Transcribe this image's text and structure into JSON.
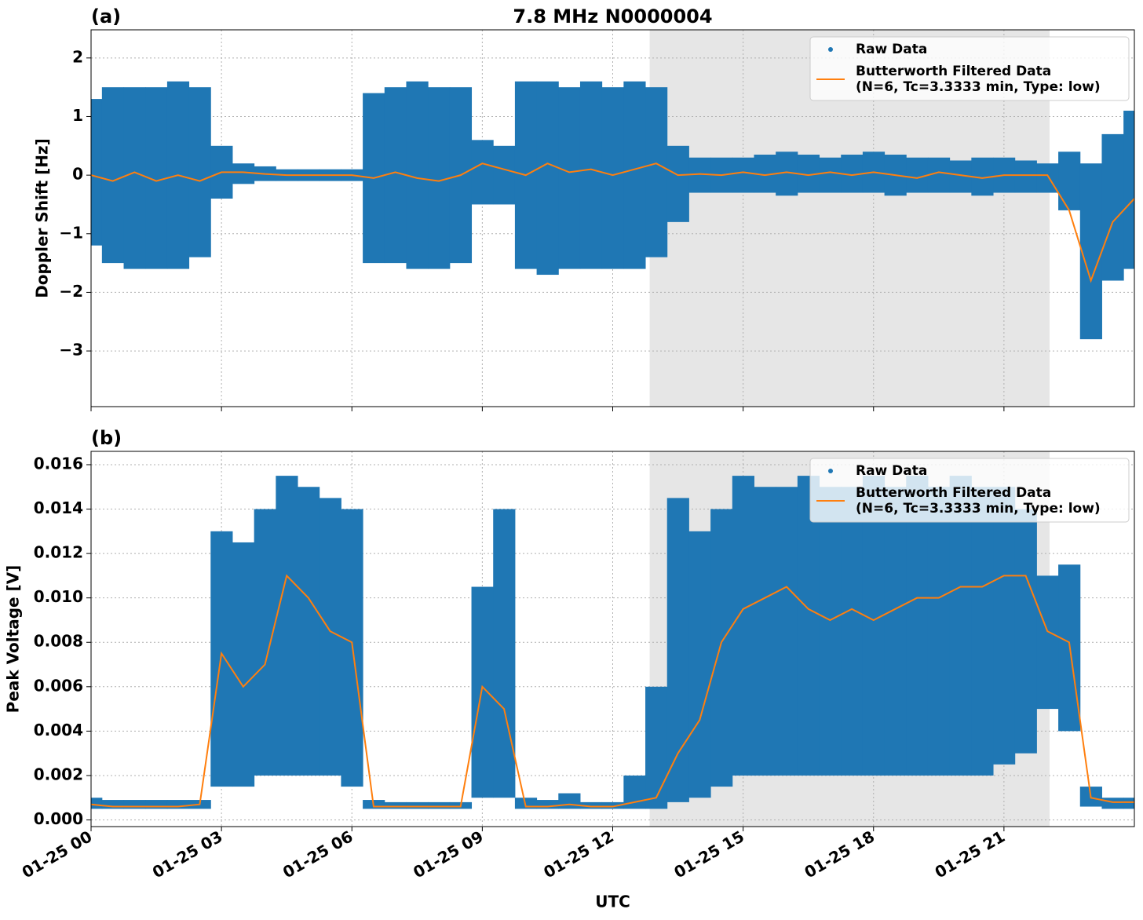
{
  "chart_data": [
    {
      "type": "scatter",
      "panel_label": "(a)",
      "title": "7.8 MHz N0000004",
      "ylabel": "Doppler Shift [Hz]",
      "xlim": [
        0,
        24
      ],
      "ylim": [
        -3.95,
        2.48
      ],
      "xticks": [
        0,
        3,
        6,
        9,
        12,
        15,
        18,
        21
      ],
      "yticks": [
        {
          "value": -3,
          "label": "−3"
        },
        {
          "value": -2,
          "label": "−2"
        },
        {
          "value": -1,
          "label": "−1"
        },
        0,
        1,
        2
      ],
      "grid": true,
      "legend": "upper right",
      "shade": [
        12.85,
        22.05
      ],
      "shade_color": "#e6e6e6",
      "x": [
        0,
        0.5,
        1,
        1.5,
        2,
        2.5,
        3,
        3.5,
        4,
        4.5,
        5,
        5.5,
        6,
        6.5,
        7,
        7.5,
        8,
        8.5,
        9,
        9.5,
        10,
        10.5,
        11,
        11.5,
        12,
        12.5,
        13,
        13.5,
        14,
        14.5,
        15,
        15.5,
        16,
        16.5,
        17,
        17.5,
        18,
        18.5,
        19,
        19.5,
        20,
        20.5,
        21,
        21.5,
        22,
        22.5,
        23,
        23.5,
        24
      ],
      "series": [
        {
          "name": "Raw Data",
          "color": "#1f77b4",
          "values": [
            1.3,
            1.5,
            1.5,
            1.5,
            1.6,
            1.5,
            0.5,
            0.2,
            0.15,
            0.1,
            0.1,
            0.1,
            0.1,
            1.4,
            1.5,
            1.6,
            1.5,
            1.5,
            0.6,
            0.5,
            1.6,
            1.6,
            1.5,
            1.6,
            1.5,
            1.6,
            1.5,
            0.5,
            0.3,
            0.3,
            0.3,
            0.35,
            0.4,
            0.35,
            0.3,
            0.35,
            0.4,
            0.35,
            0.3,
            0.3,
            0.25,
            0.3,
            0.3,
            0.25,
            0.2,
            0.4,
            0.2,
            0.7,
            1.1
          ],
          "lower": [
            -1.2,
            -1.5,
            -1.6,
            -1.6,
            -1.6,
            -1.4,
            -0.4,
            -0.15,
            -0.1,
            -0.1,
            -0.1,
            -0.1,
            -0.1,
            -1.5,
            -1.5,
            -1.6,
            -1.6,
            -1.5,
            -0.5,
            -0.5,
            -1.6,
            -1.7,
            -1.6,
            -1.6,
            -1.6,
            -1.6,
            -1.4,
            -0.8,
            -0.3,
            -0.3,
            -0.3,
            -0.3,
            -0.35,
            -0.3,
            -0.3,
            -0.3,
            -0.3,
            -0.35,
            -0.3,
            -0.3,
            -0.3,
            -0.35,
            -0.3,
            -0.3,
            -0.3,
            -0.6,
            -2.8,
            -1.8,
            -1.6
          ]
        },
        {
          "name": "Butterworth Filtered Data",
          "name_detail": "(N=6, Tc=3.3333 min, Type: low)",
          "color": "#ff7f0e",
          "values": [
            0,
            -0.1,
            0.05,
            -0.1,
            0,
            -0.1,
            0.05,
            0.05,
            0.02,
            0,
            0,
            0,
            0,
            -0.05,
            0.05,
            -0.05,
            -0.1,
            0,
            0.2,
            0.1,
            0,
            0.2,
            0.05,
            0.1,
            0,
            0.1,
            0.2,
            0,
            0.02,
            0,
            0.05,
            0,
            0.05,
            0,
            0.05,
            0,
            0.05,
            0,
            -0.05,
            0.05,
            0,
            -0.05,
            0,
            0,
            0,
            -0.6,
            -1.8,
            -0.8,
            -0.4
          ]
        }
      ]
    },
    {
      "type": "scatter",
      "panel_label": "(b)",
      "ylabel": "Peak Voltage [V]",
      "xlabel": "UTC",
      "xlim": [
        0,
        24
      ],
      "ylim": [
        -0.0003,
        0.0166
      ],
      "xticks": [
        {
          "value": 0,
          "label": "01-25 00"
        },
        {
          "value": 3,
          "label": "01-25 03"
        },
        {
          "value": 6,
          "label": "01-25 06"
        },
        {
          "value": 9,
          "label": "01-25 09"
        },
        {
          "value": 12,
          "label": "01-25 12"
        },
        {
          "value": 15,
          "label": "01-25 15"
        },
        {
          "value": 18,
          "label": "01-25 18"
        },
        {
          "value": 21,
          "label": "01-25 21"
        }
      ],
      "yticks": [
        {
          "value": 0,
          "label": "0.000"
        },
        {
          "value": 0.002,
          "label": "0.002"
        },
        {
          "value": 0.004,
          "label": "0.004"
        },
        {
          "value": 0.006,
          "label": "0.006"
        },
        {
          "value": 0.008,
          "label": "0.008"
        },
        {
          "value": 0.01,
          "label": "0.010"
        },
        {
          "value": 0.012,
          "label": "0.012"
        },
        {
          "value": 0.014,
          "label": "0.014"
        },
        {
          "value": 0.016,
          "label": "0.016"
        }
      ],
      "grid": true,
      "legend": "upper right",
      "shade": [
        12.85,
        22.05
      ],
      "shade_color": "#e6e6e6",
      "x": [
        0,
        0.5,
        1,
        1.5,
        2,
        2.5,
        3,
        3.5,
        4,
        4.5,
        5,
        5.5,
        6,
        6.5,
        7,
        7.5,
        8,
        8.5,
        9,
        9.5,
        10,
        10.5,
        11,
        11.5,
        12,
        12.5,
        13,
        13.5,
        14,
        14.5,
        15,
        15.5,
        16,
        16.5,
        17,
        17.5,
        18,
        18.5,
        19,
        19.5,
        20,
        20.5,
        21,
        21.5,
        22,
        22.5,
        23,
        23.5,
        24
      ],
      "series": [
        {
          "name": "Raw Data",
          "color": "#1f77b4",
          "values": [
            0.001,
            0.0009,
            0.0009,
            0.0009,
            0.0009,
            0.0009,
            0.013,
            0.0125,
            0.014,
            0.0155,
            0.015,
            0.0145,
            0.014,
            0.0009,
            0.0008,
            0.0008,
            0.0008,
            0.0008,
            0.0105,
            0.014,
            0.001,
            0.0009,
            0.0012,
            0.0008,
            0.0008,
            0.002,
            0.006,
            0.0145,
            0.013,
            0.014,
            0.0155,
            0.015,
            0.015,
            0.0155,
            0.015,
            0.015,
            0.0155,
            0.015,
            0.0155,
            0.015,
            0.0155,
            0.015,
            0.015,
            0.014,
            0.011,
            0.0115,
            0.0015,
            0.001,
            0.001
          ],
          "lower": [
            0.0005,
            0.0005,
            0.0005,
            0.0005,
            0.0005,
            0.0005,
            0.0015,
            0.0015,
            0.002,
            0.002,
            0.002,
            0.002,
            0.0015,
            0.0005,
            0.0005,
            0.0005,
            0.0005,
            0.0005,
            0.001,
            0.001,
            0.0005,
            0.0005,
            0.0005,
            0.0005,
            0.0005,
            0.0005,
            0.0005,
            0.0008,
            0.001,
            0.0015,
            0.002,
            0.002,
            0.002,
            0.002,
            0.002,
            0.002,
            0.002,
            0.002,
            0.002,
            0.002,
            0.002,
            0.002,
            0.0025,
            0.003,
            0.005,
            0.004,
            0.0006,
            0.0005,
            0.0005
          ]
        },
        {
          "name": "Butterworth Filtered Data",
          "name_detail": "(N=6, Tc=3.3333 min, Type: low)",
          "color": "#ff7f0e",
          "values": [
            0.0007,
            0.0006,
            0.0006,
            0.0006,
            0.0006,
            0.0007,
            0.0075,
            0.006,
            0.007,
            0.011,
            0.01,
            0.0085,
            0.008,
            0.0006,
            0.0006,
            0.0006,
            0.0006,
            0.0006,
            0.006,
            0.005,
            0.0006,
            0.0006,
            0.0007,
            0.0006,
            0.0006,
            0.0008,
            0.001,
            0.003,
            0.0045,
            0.008,
            0.0095,
            0.01,
            0.0105,
            0.0095,
            0.009,
            0.0095,
            0.009,
            0.0095,
            0.01,
            0.01,
            0.0105,
            0.0105,
            0.011,
            0.011,
            0.0085,
            0.008,
            0.001,
            0.0008,
            0.0008
          ]
        }
      ]
    }
  ]
}
